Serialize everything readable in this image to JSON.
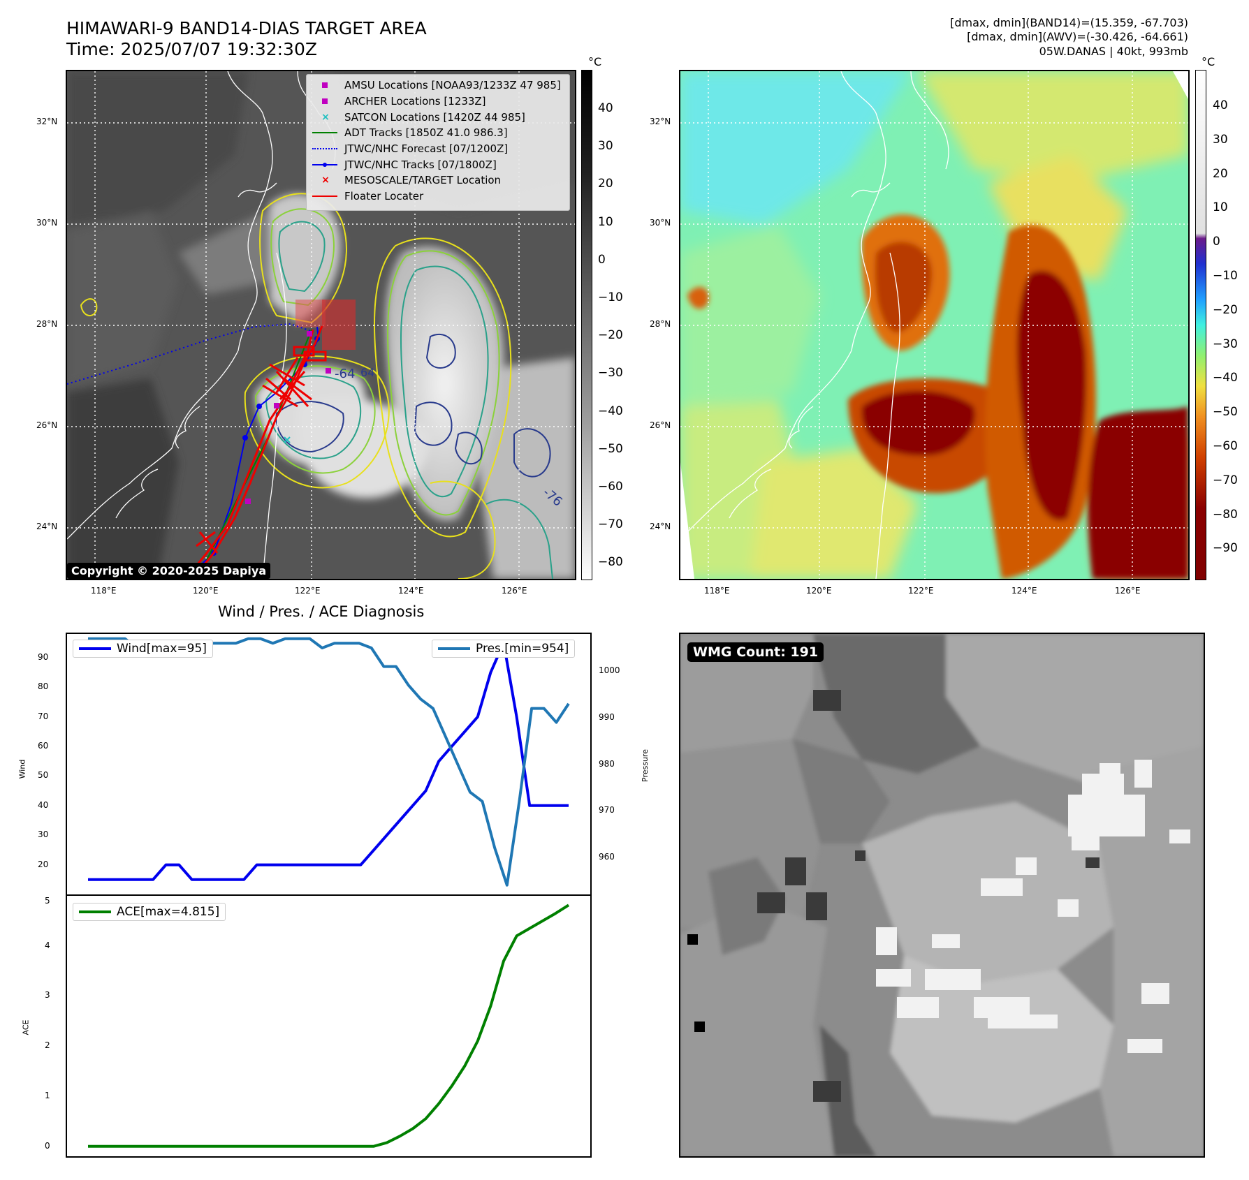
{
  "header": {
    "title_line1": "HIMAWARI-9 BAND14-DIAS TARGET AREA",
    "title_line2": "Time: 2025/07/07 19:32:30Z",
    "info_line1": "[dmax, dmin](BAND14)=(15.359, -67.703)",
    "info_line2": "[dmax, dmin](AWV)=(-30.426, -64.661)",
    "info_line3": "05W.DANAS | 40kt, 993mb"
  },
  "map": {
    "lat_ticks": [
      "32°N",
      "30°N",
      "28°N",
      "26°N",
      "24°N"
    ],
    "lon_ticks": [
      "118°E",
      "120°E",
      "122°E",
      "124°E",
      "126°E"
    ],
    "contour_label_64": "-64",
    "contour_label_76": "-76",
    "copyright": "Copyright © 2020-2025 Dapiya"
  },
  "colorbar_gray": {
    "unit": "°C",
    "ticks": [
      "40",
      "30",
      "20",
      "10",
      "0",
      "−10",
      "−20",
      "−30",
      "−40",
      "−50",
      "−60",
      "−70",
      "−80"
    ]
  },
  "colorbar_color": {
    "unit": "°C",
    "ticks": [
      "40",
      "30",
      "20",
      "10",
      "0",
      "−10",
      "−20",
      "−30",
      "−40",
      "−50",
      "−60",
      "−70",
      "−80",
      "−90"
    ]
  },
  "legend": {
    "items": [
      {
        "label": "AMSU Locations [NOAA93/1233Z 47 985]",
        "color": "#c000c0",
        "sym": "square"
      },
      {
        "label": "ARCHER Locations [1233Z]",
        "color": "#c000c0",
        "sym": "square"
      },
      {
        "label": "SATCON Locations [1420Z 44 985]",
        "color": "#20c0c0",
        "sym": "x"
      },
      {
        "label": "ADT Tracks [1850Z 41.0 986.3]",
        "color": "#008000",
        "sym": "line"
      },
      {
        "label": "JTWC/NHC Forecast [07/1200Z]",
        "color": "#0000ee",
        "sym": "dotted"
      },
      {
        "label": "JTWC/NHC Tracks [07/1800Z]",
        "color": "#0000ee",
        "sym": "linedot"
      },
      {
        "label": "MESOSCALE/TARGET Location",
        "color": "#ee0000",
        "sym": "x"
      },
      {
        "label": "Floater Locater",
        "color": "#ee0000",
        "sym": "line"
      }
    ]
  },
  "diag": {
    "title": "Wind / Pres. / ACE Diagnosis",
    "wind_label": "Wind",
    "pres_label": "Pressure",
    "ace_label": "ACE",
    "wind_legend": "Wind[max=95]",
    "pres_legend": "Pres.[min=954]",
    "ace_legend": "ACE[max=4.815]",
    "wind_ticks": [
      "20",
      "30",
      "40",
      "50",
      "60",
      "70",
      "80",
      "90"
    ],
    "pres_ticks": [
      "960",
      "970",
      "980",
      "990",
      "1000"
    ],
    "ace_ticks": [
      "0",
      "1",
      "2",
      "3",
      "4",
      "5"
    ]
  },
  "wmg": {
    "label": "WMG Count: 191"
  },
  "chart_data": [
    {
      "type": "line",
      "title": "Wind / Pres. / ACE Diagnosis",
      "ylabel": "Wind",
      "ylim": [
        10,
        98
      ],
      "series": [
        {
          "name": "Wind[max=95]",
          "color": "#0000ee",
          "values": [
            15,
            15,
            15,
            15,
            15,
            15,
            20,
            20,
            15,
            15,
            15,
            15,
            15,
            20,
            20,
            20,
            20,
            20,
            20,
            20,
            20,
            20,
            25,
            30,
            35,
            40,
            45,
            55,
            60,
            65,
            70,
            85,
            95,
            70,
            40,
            40,
            40,
            40
          ]
        }
      ]
    },
    {
      "type": "line",
      "ylabel": "Pressure",
      "ylim": [
        952,
        1008
      ],
      "series": [
        {
          "name": "Pres.[min=954]",
          "color": "#1f77b4",
          "values": [
            1007,
            1007,
            1007,
            1007,
            1005,
            1005,
            1005,
            1005,
            1005,
            1006,
            1006,
            1006,
            1006,
            1007,
            1007,
            1006,
            1007,
            1007,
            1007,
            1005,
            1006,
            1006,
            1006,
            1005,
            1001,
            1001,
            997,
            994,
            992,
            986,
            980,
            974,
            972,
            962,
            954,
            972,
            992,
            992,
            989,
            993
          ]
        }
      ]
    },
    {
      "type": "line",
      "ylabel": "ACE",
      "ylim": [
        -0.2,
        5
      ],
      "series": [
        {
          "name": "ACE[max=4.815]",
          "color": "#008000",
          "values": [
            0,
            0,
            0,
            0,
            0,
            0,
            0,
            0,
            0,
            0,
            0,
            0,
            0,
            0,
            0,
            0,
            0,
            0,
            0,
            0,
            0,
            0,
            0,
            0.07,
            0.2,
            0.35,
            0.55,
            0.85,
            1.2,
            1.6,
            2.1,
            2.8,
            3.7,
            4.2,
            4.35,
            4.5,
            4.65,
            4.815
          ]
        }
      ]
    }
  ]
}
